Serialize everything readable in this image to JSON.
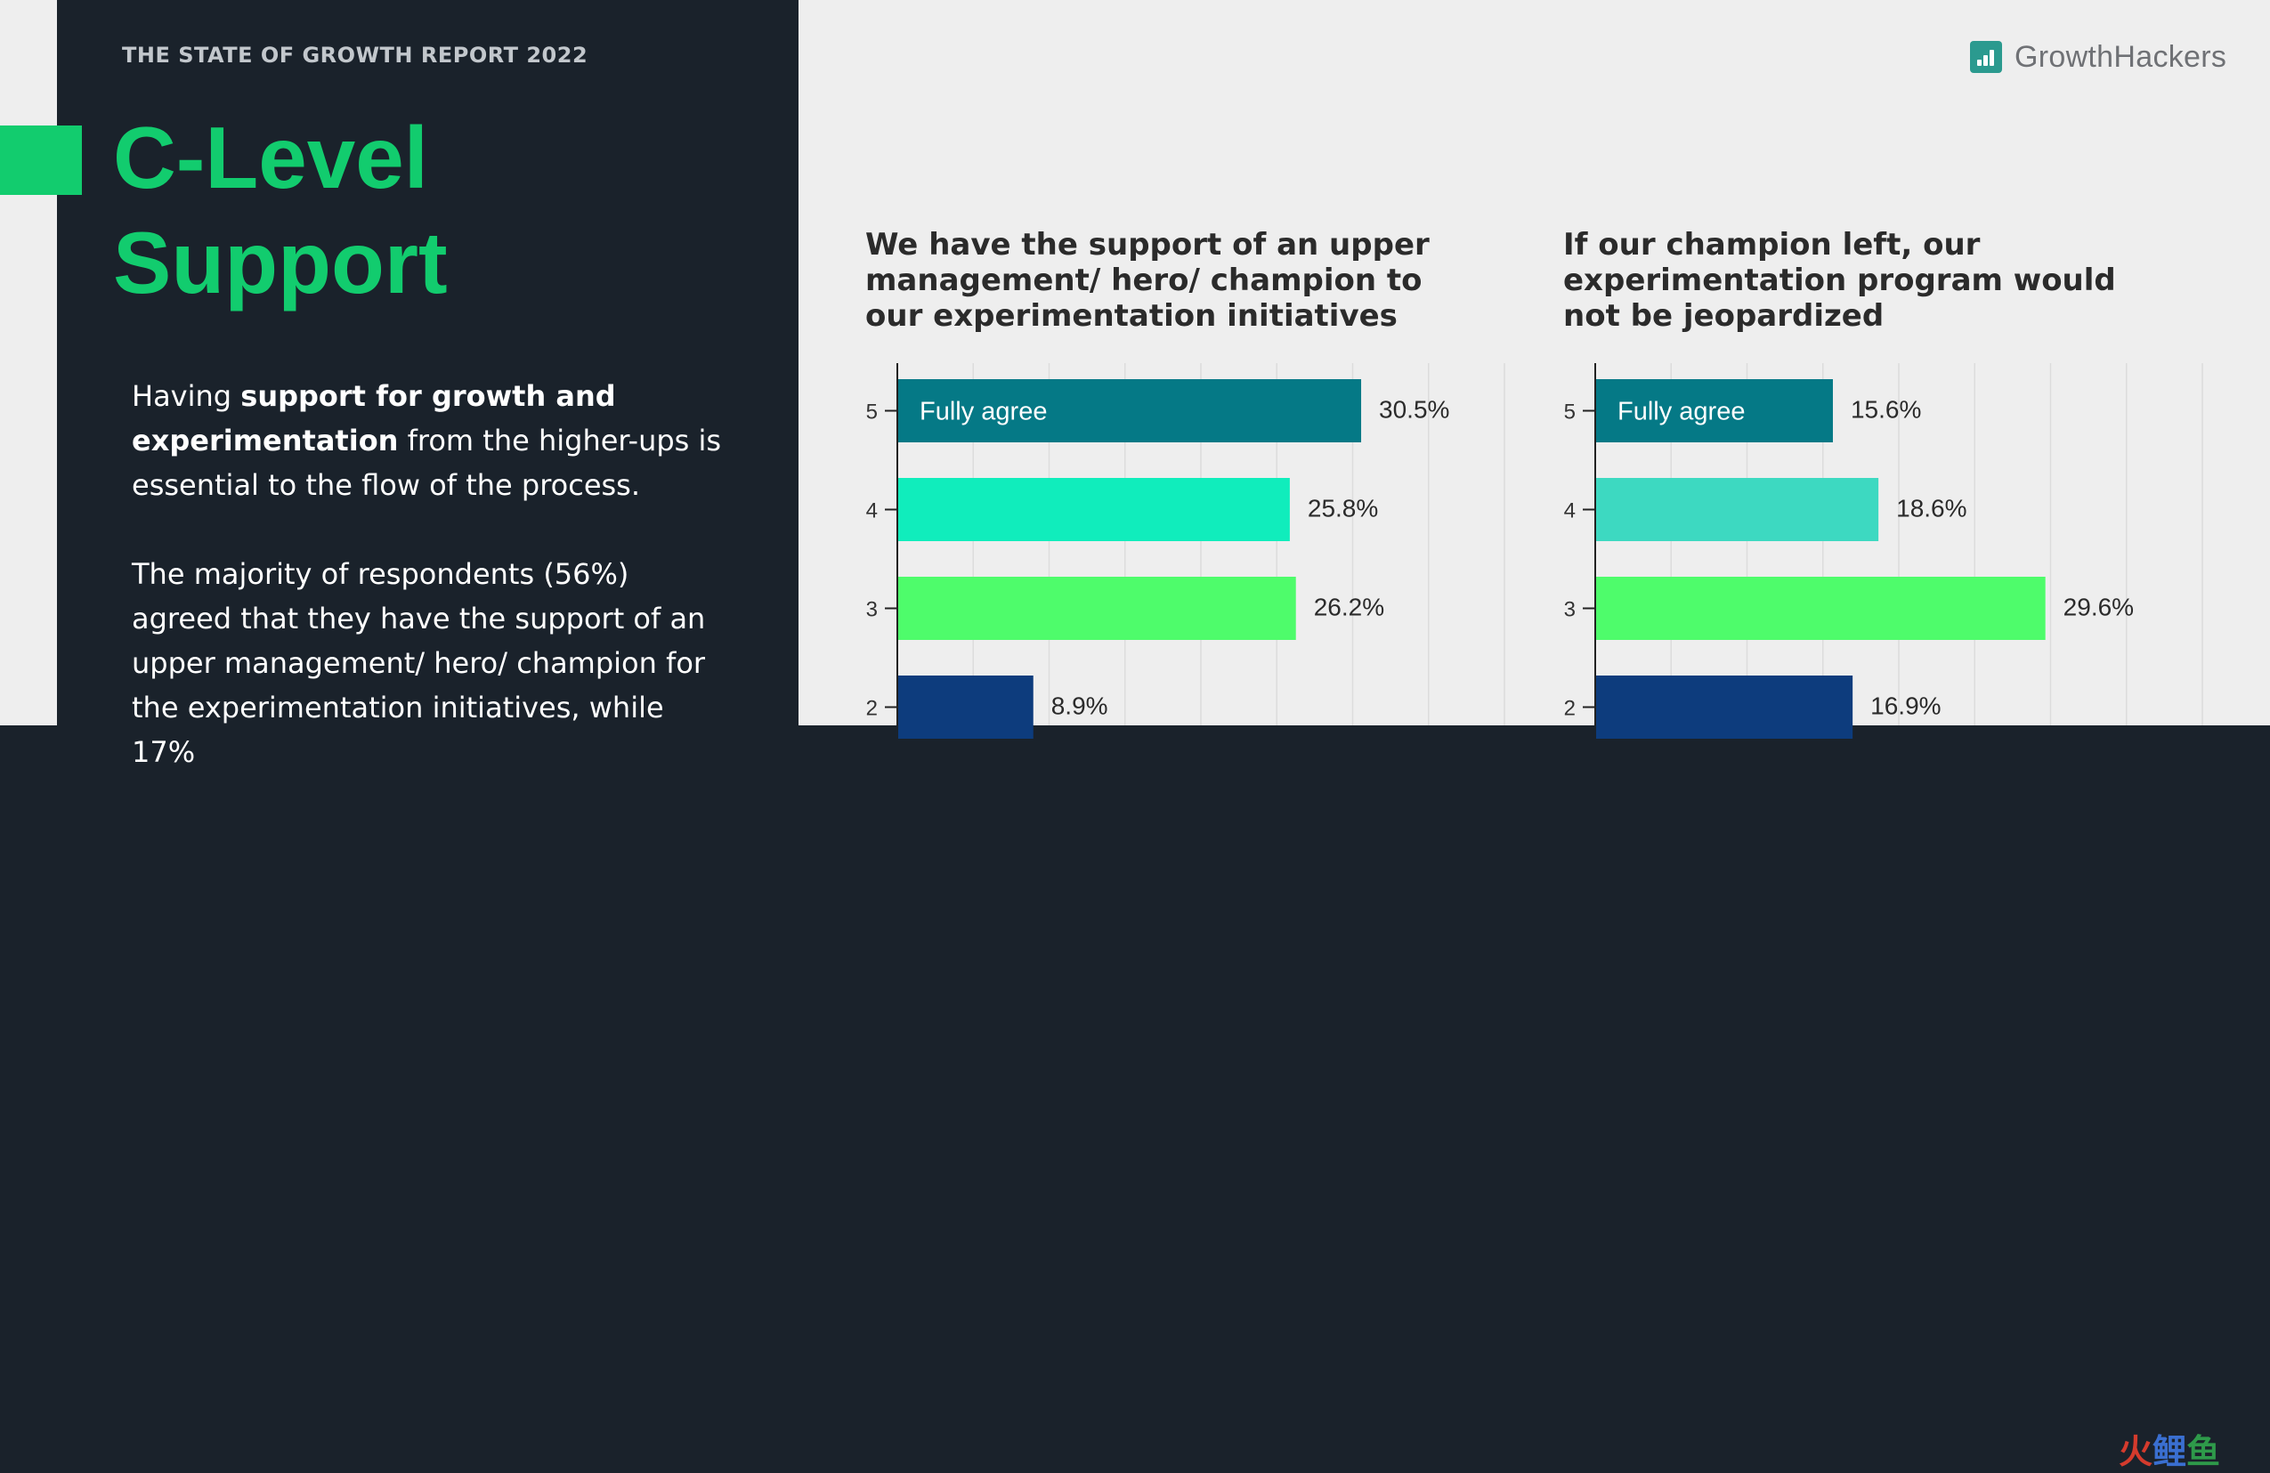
{
  "report_title": "THE STATE OF GROWTH REPORT 2022",
  "title_line1": "C-Level",
  "title_line2": "Support",
  "intro": {
    "pre": "Having ",
    "bold": "support for growth and experimentation",
    "post": " from the higher-ups is essential to the flow of the process."
  },
  "paragraph2": "The majority of respondents (56%) agreed that they have the support of an upper management/ hero/ champion for the experimentation initiatives, while 17%",
  "logo": {
    "part1": "Growth",
    "part2": "Hackers"
  },
  "watermark": {
    "c1": "火",
    "c2": "鲤",
    "c3": "鱼"
  },
  "colors": {
    "accent": "#12cc6e",
    "dark": "#1a222b",
    "slide_bg": "#eeeeee",
    "bar_5": "#057986",
    "bar_4a": "#10edbc",
    "bar_4b": "#3dd9c1",
    "bar_3": "#4efc6b",
    "bar_2": "#0d3c7d"
  },
  "chart_data": [
    {
      "type": "bar",
      "orientation": "horizontal",
      "title": "We have the support of an upper management/ hero/ champion to our experimentation initiatives",
      "categories": [
        "5",
        "4",
        "3",
        "2"
      ],
      "values": [
        30.5,
        25.8,
        26.2,
        8.9
      ],
      "value_labels": [
        "30.5%",
        "25.8%",
        "26.2%",
        "8.9%"
      ],
      "bar_colors": [
        "#057986",
        "#10edbc",
        "#4efc6b",
        "#0d3c7d"
      ],
      "annotations": [
        {
          "category": "5",
          "text": "Fully agree"
        }
      ],
      "xlim": [
        0,
        40
      ],
      "grid": true
    },
    {
      "type": "bar",
      "orientation": "horizontal",
      "title": "If our champion left, our experimentation program would not be jeopardized",
      "categories": [
        "5",
        "4",
        "3",
        "2"
      ],
      "values": [
        15.6,
        18.6,
        29.6,
        16.9
      ],
      "value_labels": [
        "15.6%",
        "18.6%",
        "29.6%",
        "16.9%"
      ],
      "bar_colors": [
        "#057986",
        "#3dd9c1",
        "#4efc6b",
        "#0d3c7d"
      ],
      "annotations": [
        {
          "category": "5",
          "text": "Fully agree"
        }
      ],
      "xlim": [
        0,
        40
      ],
      "grid": true
    }
  ]
}
